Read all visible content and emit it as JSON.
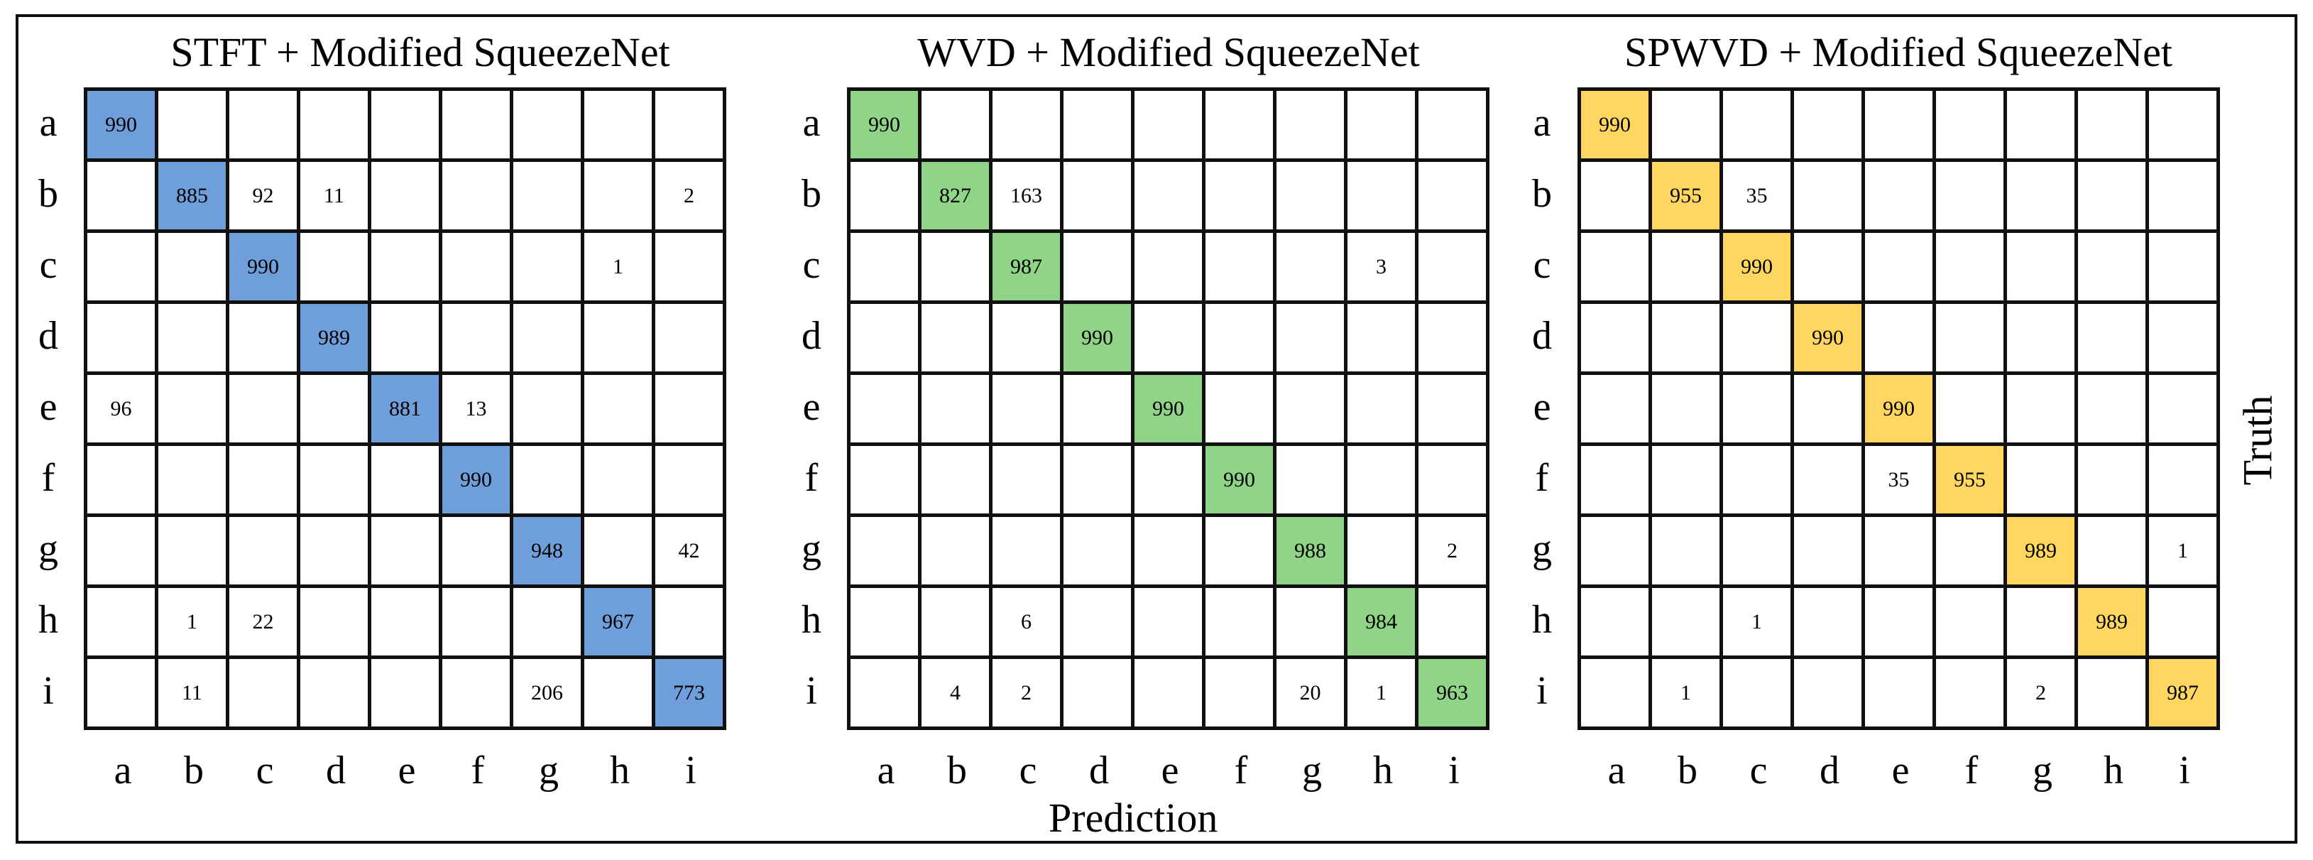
{
  "colors": {
    "panel_1": "#6f9fdb",
    "panel_2": "#8fd487",
    "panel_3": "#ffd760"
  },
  "labels": {
    "classes": [
      "a",
      "b",
      "c",
      "d",
      "e",
      "f",
      "g",
      "h",
      "i"
    ],
    "x_axis": "Prediction",
    "y_axis": "Truth"
  },
  "chart_data": [
    {
      "type": "heatmap",
      "title": "STFT + Modified SqueezeNet",
      "xlabel": "Prediction",
      "ylabel": "Truth",
      "x": [
        "a",
        "b",
        "c",
        "d",
        "e",
        "f",
        "g",
        "h",
        "i"
      ],
      "y": [
        "a",
        "b",
        "c",
        "d",
        "e",
        "f",
        "g",
        "h",
        "i"
      ],
      "values": [
        [
          990,
          null,
          null,
          null,
          null,
          null,
          null,
          null,
          null
        ],
        [
          null,
          885,
          92,
          11,
          null,
          null,
          null,
          null,
          2
        ],
        [
          null,
          null,
          990,
          null,
          null,
          null,
          null,
          1,
          null
        ],
        [
          null,
          null,
          null,
          989,
          null,
          null,
          null,
          null,
          null
        ],
        [
          96,
          null,
          null,
          null,
          881,
          13,
          null,
          null,
          null
        ],
        [
          null,
          null,
          null,
          null,
          null,
          990,
          null,
          null,
          null
        ],
        [
          null,
          null,
          null,
          null,
          null,
          null,
          948,
          null,
          42
        ],
        [
          null,
          1,
          22,
          null,
          null,
          null,
          null,
          967,
          null
        ],
        [
          null,
          11,
          null,
          null,
          null,
          null,
          206,
          null,
          773
        ]
      ]
    },
    {
      "type": "heatmap",
      "title": "WVD + Modified SqueezeNet",
      "xlabel": "Prediction",
      "ylabel": "Truth",
      "x": [
        "a",
        "b",
        "c",
        "d",
        "e",
        "f",
        "g",
        "h",
        "i"
      ],
      "y": [
        "a",
        "b",
        "c",
        "d",
        "e",
        "f",
        "g",
        "h",
        "i"
      ],
      "values": [
        [
          990,
          null,
          null,
          null,
          null,
          null,
          null,
          null,
          null
        ],
        [
          null,
          827,
          163,
          null,
          null,
          null,
          null,
          null,
          null
        ],
        [
          null,
          null,
          987,
          null,
          null,
          null,
          null,
          3,
          null
        ],
        [
          null,
          null,
          null,
          990,
          null,
          null,
          null,
          null,
          null
        ],
        [
          null,
          null,
          null,
          null,
          990,
          null,
          null,
          null,
          null
        ],
        [
          null,
          null,
          null,
          null,
          null,
          990,
          null,
          null,
          null
        ],
        [
          null,
          null,
          null,
          null,
          null,
          null,
          988,
          null,
          2
        ],
        [
          null,
          null,
          6,
          null,
          null,
          null,
          null,
          984,
          null
        ],
        [
          null,
          4,
          2,
          null,
          null,
          null,
          20,
          1,
          963
        ]
      ]
    },
    {
      "type": "heatmap",
      "title": "SPWVD + Modified SqueezeNet",
      "xlabel": "Prediction",
      "ylabel": "Truth",
      "x": [
        "a",
        "b",
        "c",
        "d",
        "e",
        "f",
        "g",
        "h",
        "i"
      ],
      "y": [
        "a",
        "b",
        "c",
        "d",
        "e",
        "f",
        "g",
        "h",
        "i"
      ],
      "values": [
        [
          990,
          null,
          null,
          null,
          null,
          null,
          null,
          null,
          null
        ],
        [
          null,
          955,
          35,
          null,
          null,
          null,
          null,
          null,
          null
        ],
        [
          null,
          null,
          990,
          null,
          null,
          null,
          null,
          null,
          null
        ],
        [
          null,
          null,
          null,
          990,
          null,
          null,
          null,
          null,
          null
        ],
        [
          null,
          null,
          null,
          null,
          990,
          null,
          null,
          null,
          null
        ],
        [
          null,
          null,
          null,
          null,
          35,
          955,
          null,
          null,
          null
        ],
        [
          null,
          null,
          null,
          null,
          null,
          null,
          989,
          null,
          1
        ],
        [
          null,
          null,
          1,
          null,
          null,
          null,
          null,
          989,
          null
        ],
        [
          null,
          1,
          null,
          null,
          null,
          null,
          2,
          null,
          987
        ]
      ]
    }
  ]
}
